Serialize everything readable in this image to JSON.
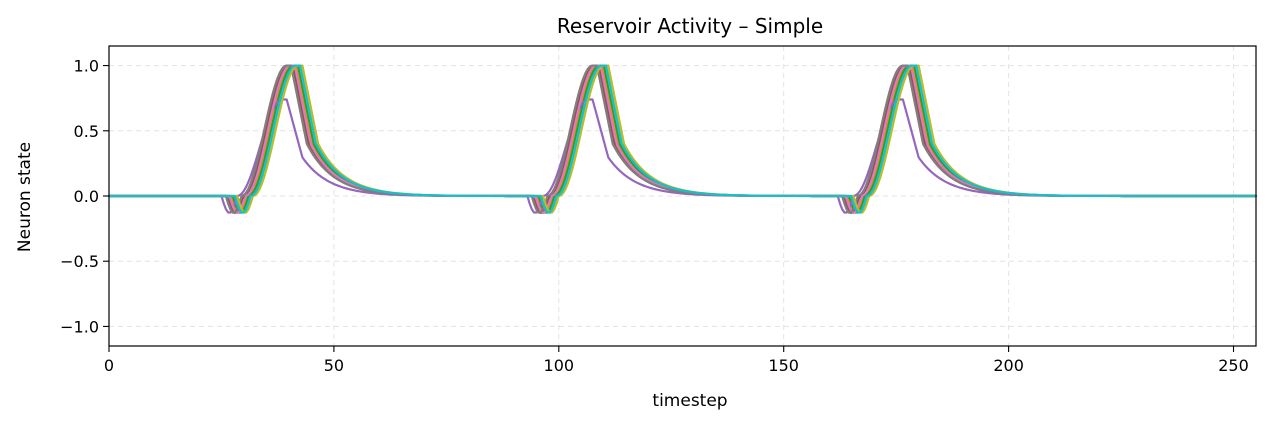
{
  "chart_data": {
    "type": "line",
    "title": "Reservoir Activity – Simple",
    "xlabel": "timestep",
    "ylabel": "Neuron state",
    "xlim": [
      0,
      255
    ],
    "ylim": [
      -1.15,
      1.15
    ],
    "xticks": [
      0,
      50,
      100,
      150,
      200,
      250
    ],
    "xtick_labels": [
      "0",
      "50",
      "100",
      "150",
      "200",
      "250"
    ],
    "yticks": [
      -1.0,
      -0.5,
      0.0,
      0.5,
      1.0
    ],
    "ytick_labels": [
      "−1.0",
      "−0.5",
      "0.0",
      "0.5",
      "1.0"
    ],
    "grid": true,
    "legend": "none",
    "pulses": [
      {
        "onset": 27,
        "duration": 14
      },
      {
        "onset": 95,
        "duration": 14
      },
      {
        "onset": 164,
        "duration": 18
      }
    ],
    "series": [
      {
        "color": "#1f77b4",
        "shift": 0.5,
        "peak": 1.0
      },
      {
        "color": "#ff7f0e",
        "shift": 1.0,
        "peak": 1.0
      },
      {
        "color": "#2ca02c",
        "shift": 1.5,
        "peak": 1.0
      },
      {
        "color": "#d62728",
        "shift": 0.0,
        "peak": 1.0
      },
      {
        "color": "#9467bd",
        "shift": -1.0,
        "peak": 0.74
      },
      {
        "color": "#8c564b",
        "shift": 0.3,
        "peak": 1.0
      },
      {
        "color": "#e377c2",
        "shift": 0.8,
        "peak": 1.0
      },
      {
        "color": "#7f7f7f",
        "shift": 0.0,
        "peak": 1.0
      },
      {
        "color": "#bcbd22",
        "shift": 2.5,
        "peak": 1.0
      },
      {
        "color": "#17becf",
        "shift": 2.0,
        "peak": 1.0
      }
    ]
  }
}
